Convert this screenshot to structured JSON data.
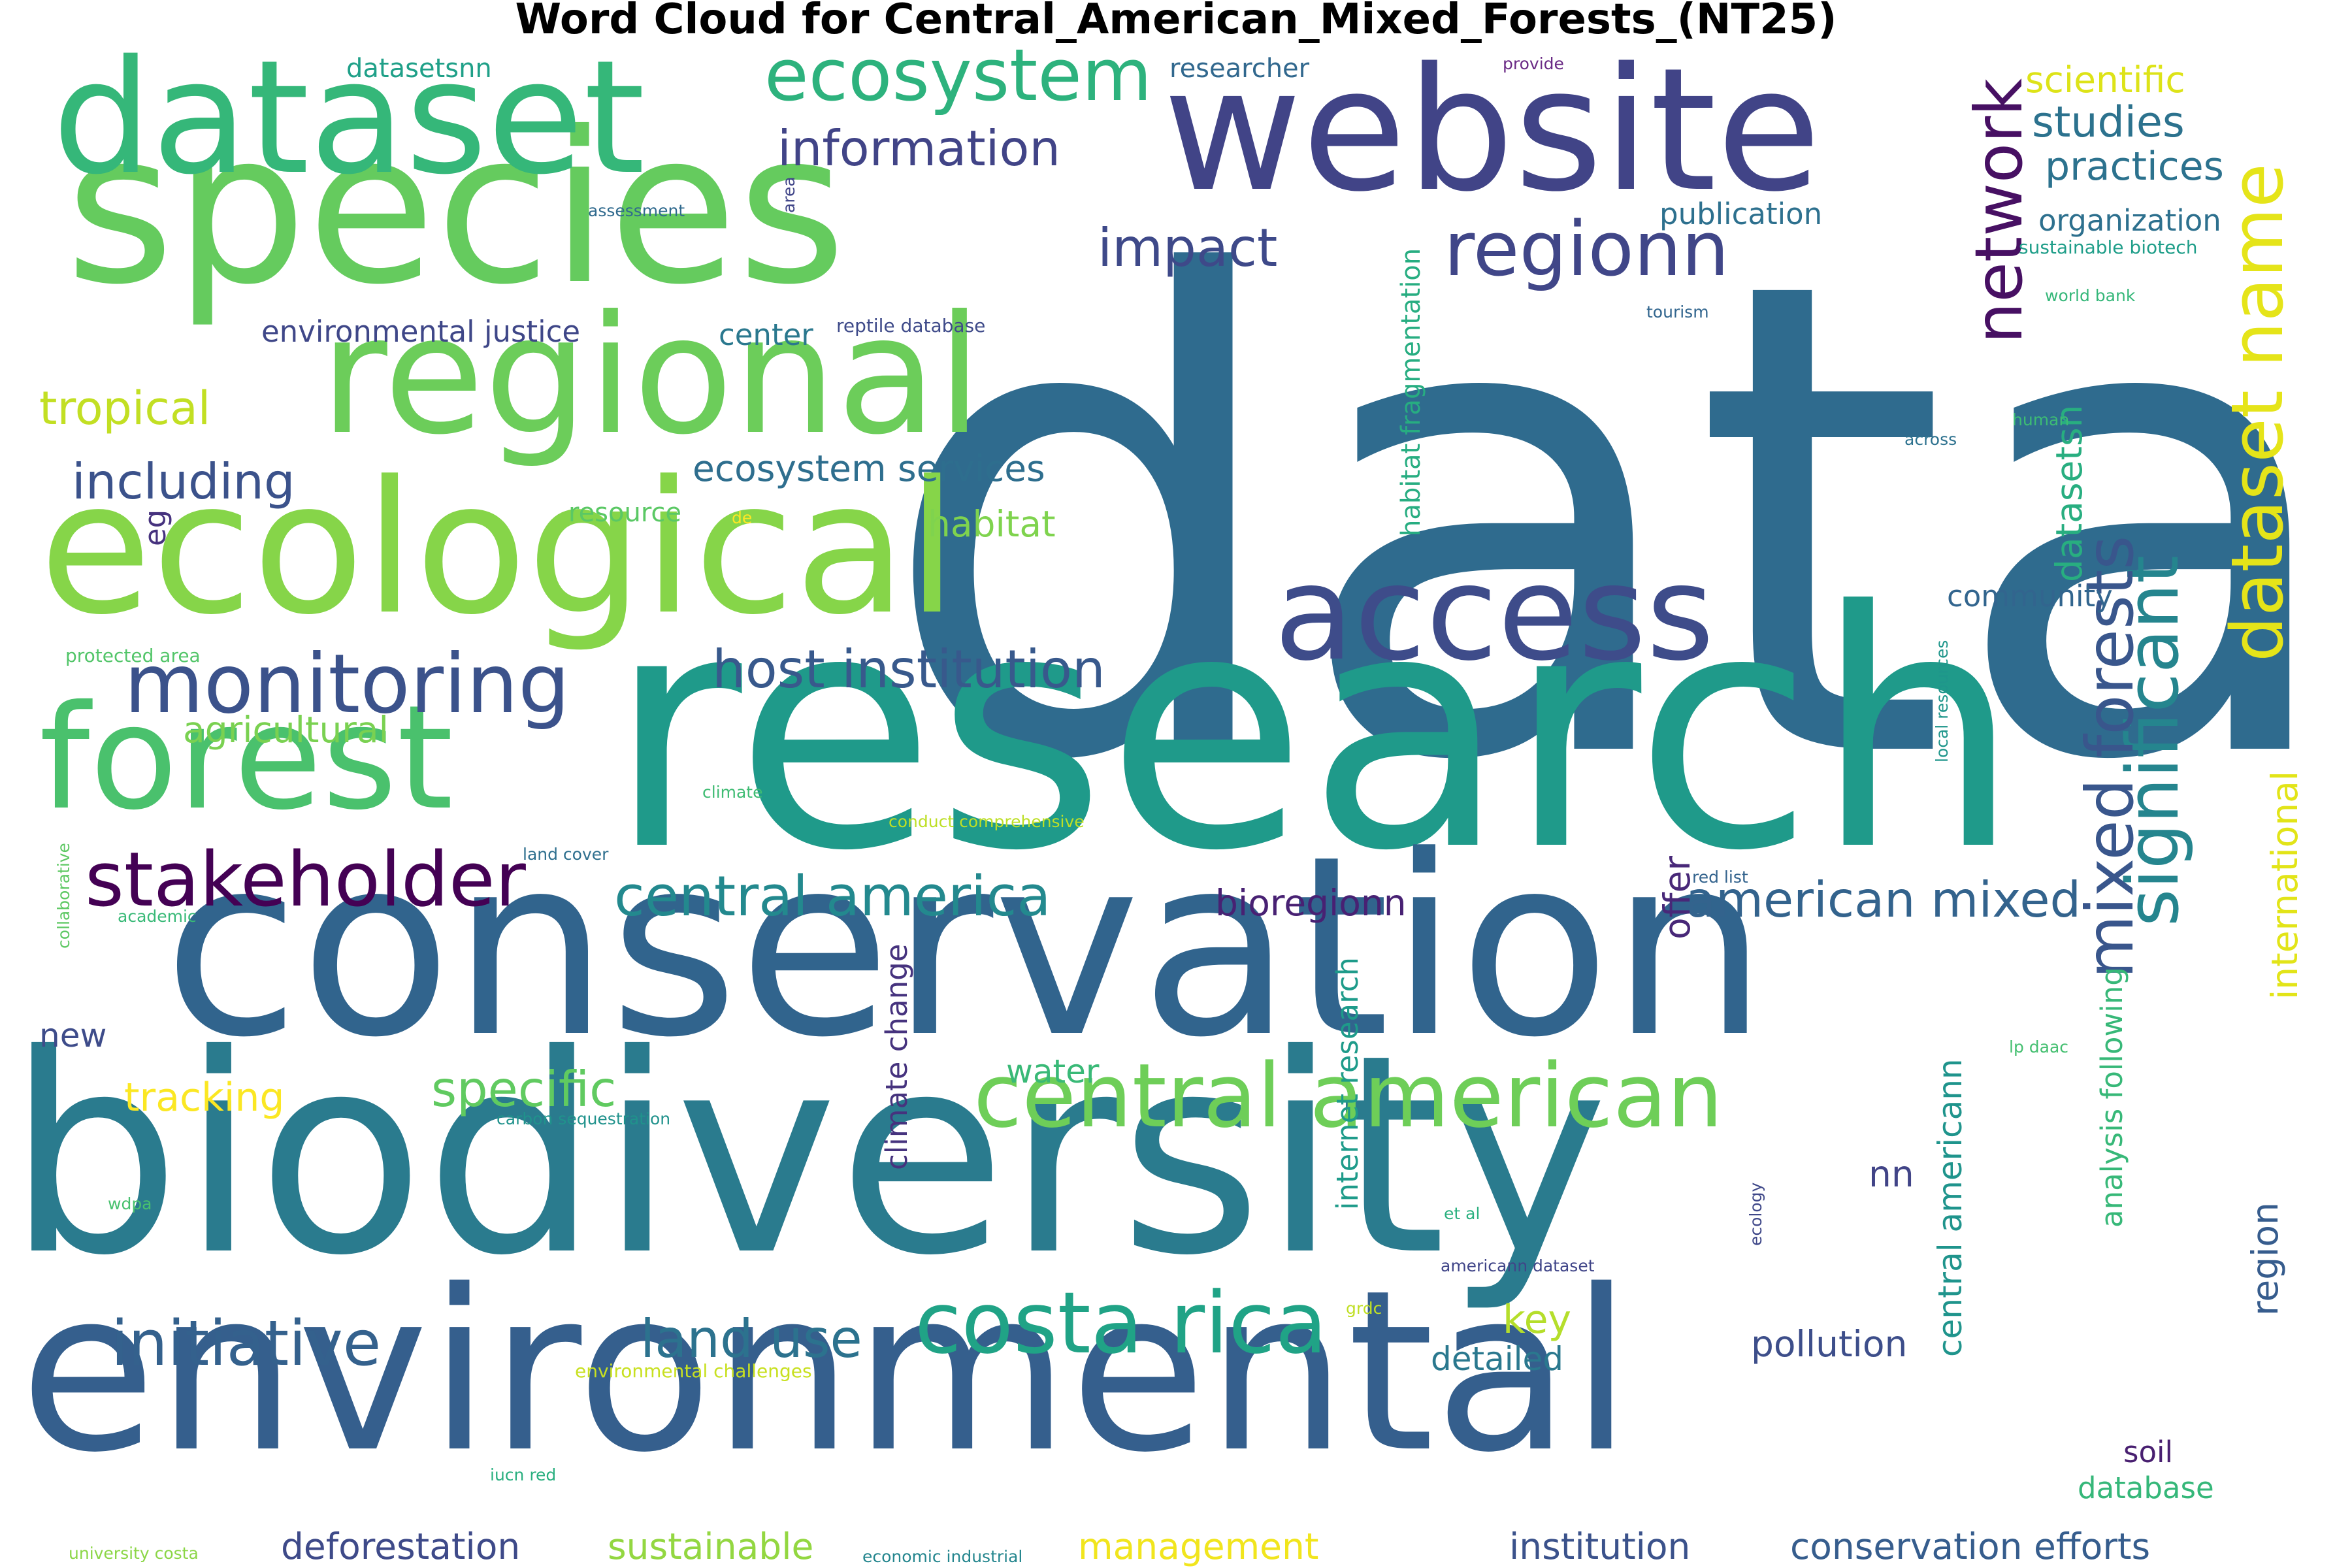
{
  "title": "Word Cloud for Central_American_Mixed_Forests_(NT25)",
  "colormap": [
    "#440154",
    "#3b528b",
    "#21918c",
    "#5ec962",
    "#fde725"
  ],
  "words": [
    {
      "text": "data",
      "color": "#2f6b8e"
    },
    {
      "text": "research",
      "color": "#1f9a8a"
    },
    {
      "text": "biodiversity",
      "color": "#2a7b8e"
    },
    {
      "text": "conservation",
      "color": "#31648d"
    },
    {
      "text": "environmental",
      "color": "#355f8d"
    },
    {
      "text": "species",
      "color": "#65cb5e"
    },
    {
      "text": "website",
      "color": "#414487"
    },
    {
      "text": "dataset",
      "color": "#35b779"
    },
    {
      "text": "ecological",
      "color": "#86d549"
    },
    {
      "text": "regional",
      "color": "#6ccd5a"
    },
    {
      "text": "forest",
      "color": "#4ac16d"
    },
    {
      "text": "access",
      "color": "#3e4c8a"
    },
    {
      "text": "ecosystem",
      "color": "#2db27d"
    },
    {
      "text": "monitoring",
      "color": "#3b528b"
    },
    {
      "text": "central american",
      "color": "#6ece58"
    },
    {
      "text": "costa rica",
      "color": "#20a386"
    },
    {
      "text": "stakeholder",
      "color": "#440154"
    },
    {
      "text": "regionn",
      "color": "#404688"
    },
    {
      "text": "network",
      "color": "#471063"
    },
    {
      "text": "dataset name",
      "color": "#e5e419"
    },
    {
      "text": "significant",
      "color": "#25858e"
    },
    {
      "text": "mixed forests",
      "color": "#39568c"
    },
    {
      "text": "information",
      "color": "#414487"
    },
    {
      "text": "impact",
      "color": "#3e4989"
    },
    {
      "text": "host institution",
      "color": "#38598c"
    },
    {
      "text": "central america",
      "color": "#23898e"
    },
    {
      "text": "initiative",
      "color": "#34618d"
    },
    {
      "text": "land use",
      "color": "#2c728e"
    },
    {
      "text": "specific",
      "color": "#60ca60"
    },
    {
      "text": "american mixed",
      "color": "#33638d"
    },
    {
      "text": "studies",
      "color": "#2c728e"
    },
    {
      "text": "practices",
      "color": "#2c728e"
    },
    {
      "text": "scientific",
      "color": "#dde318"
    },
    {
      "text": "tropical",
      "color": "#c2df23"
    },
    {
      "text": "including",
      "color": "#3b528b"
    },
    {
      "text": "ecosystem services",
      "color": "#2e6e8e"
    },
    {
      "text": "habitat",
      "color": "#7fd34e"
    },
    {
      "text": "agricultural",
      "color": "#7ad151"
    },
    {
      "text": "environmental justice",
      "color": "#3f4788"
    },
    {
      "text": "center",
      "color": "#2a788e"
    },
    {
      "text": "researcher",
      "color": "#31688e"
    },
    {
      "text": "publication",
      "color": "#2d708e"
    },
    {
      "text": "organization",
      "color": "#2d708e"
    },
    {
      "text": "datasetsnn",
      "color": "#1fa088"
    },
    {
      "text": "provide",
      "color": "#6a2a85"
    },
    {
      "text": "community",
      "color": "#32658e"
    },
    {
      "text": "habitat fragmentation",
      "color": "#27ad81"
    },
    {
      "text": "datasetsn",
      "color": "#28ae80"
    },
    {
      "text": "international",
      "color": "#e2e418"
    },
    {
      "text": "analysis following",
      "color": "#37b878"
    },
    {
      "text": "central americann",
      "color": "#1f948c"
    },
    {
      "text": "region",
      "color": "#365c8d"
    },
    {
      "text": "offer",
      "color": "#482878"
    },
    {
      "text": "bioregionn",
      "color": "#482173"
    },
    {
      "text": "climate change",
      "color": "#46337e"
    },
    {
      "text": "internet research",
      "color": "#1e9b8a"
    },
    {
      "text": "water",
      "color": "#39b977"
    },
    {
      "text": "tracking",
      "color": "#fbe723"
    },
    {
      "text": "new",
      "color": "#3e4c8a"
    },
    {
      "text": "key",
      "color": "#b5de2b"
    },
    {
      "text": "detailed",
      "color": "#2a788e"
    },
    {
      "text": "pollution",
      "color": "#3d4e8a"
    },
    {
      "text": "soil",
      "color": "#481f70"
    },
    {
      "text": "database",
      "color": "#35b779"
    },
    {
      "text": "deforestation",
      "color": "#3e4a89"
    },
    {
      "text": "sustainable",
      "color": "#93d741"
    },
    {
      "text": "management",
      "color": "#f1e51d"
    },
    {
      "text": "institution",
      "color": "#3b528b"
    },
    {
      "text": "conservation efforts",
      "color": "#365d8d"
    },
    {
      "text": "nn",
      "color": "#414487"
    },
    {
      "text": "resource",
      "color": "#5ac864"
    },
    {
      "text": "eg",
      "color": "#46327e"
    },
    {
      "text": "de",
      "color": "#fde725"
    },
    {
      "text": "protected area",
      "color": "#52c569"
    },
    {
      "text": "climate",
      "color": "#3fbc73"
    },
    {
      "text": "conduct comprehensive",
      "color": "#bddf26"
    },
    {
      "text": "land cover",
      "color": "#2e6f8e"
    },
    {
      "text": "collaborative",
      "color": "#5dc863"
    },
    {
      "text": "academic",
      "color": "#38b977"
    },
    {
      "text": "carbon sequestration",
      "color": "#20928c"
    },
    {
      "text": "wdpa",
      "color": "#48c16e"
    },
    {
      "text": "environmental challenges",
      "color": "#c8e020"
    },
    {
      "text": "iucn red",
      "color": "#29af7f"
    },
    {
      "text": "university costa",
      "color": "#8bd646"
    },
    {
      "text": "economic industrial",
      "color": "#24868e"
    },
    {
      "text": "reptile database",
      "color": "#3e4a89"
    },
    {
      "text": "assessment",
      "color": "#306a8e"
    },
    {
      "text": "area",
      "color": "#404588"
    },
    {
      "text": "tourism",
      "color": "#31658e"
    },
    {
      "text": "sustainable biotech",
      "color": "#1f9e89"
    },
    {
      "text": "world bank",
      "color": "#35b779"
    },
    {
      "text": "human",
      "color": "#3dbc74"
    },
    {
      "text": "across",
      "color": "#2c718e"
    },
    {
      "text": "local resources",
      "color": "#1f968b"
    },
    {
      "text": "red list",
      "color": "#33638d"
    },
    {
      "text": "lp daac",
      "color": "#44bf70"
    },
    {
      "text": "et al",
      "color": "#2ab07f"
    },
    {
      "text": "ecology",
      "color": "#3f4889"
    },
    {
      "text": "americann dataset",
      "color": "#404588"
    },
    {
      "text": "grdc",
      "color": "#c0df25"
    }
  ]
}
